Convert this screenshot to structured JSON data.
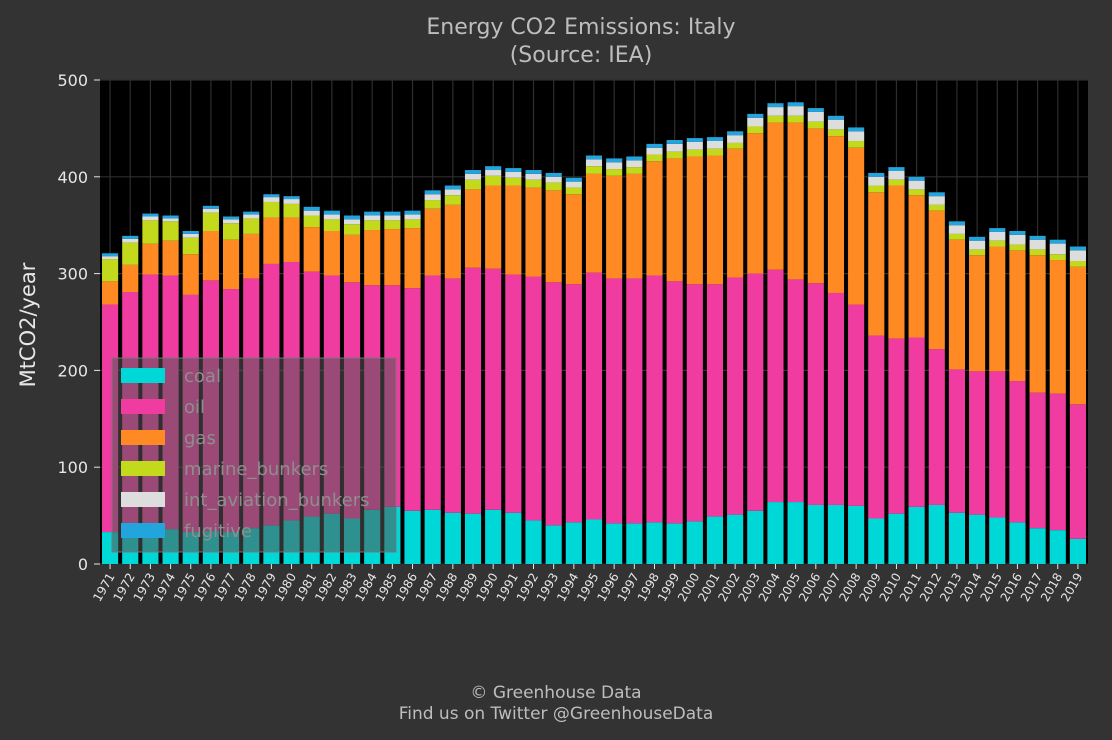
{
  "chart_data": {
    "type": "bar",
    "stacked": true,
    "title": "Energy CO2 Emissions: Italy",
    "subtitle": "(Source: IEA)",
    "ylabel": "MtCO2/year",
    "xlabel": "",
    "ylim": [
      0,
      500
    ],
    "yticks": [
      0,
      100,
      200,
      300,
      400,
      500
    ],
    "grid": true,
    "legend_position": "lower-left",
    "categories": [
      "1971",
      "1972",
      "1973",
      "1974",
      "1975",
      "1976",
      "1977",
      "1978",
      "1979",
      "1980",
      "1981",
      "1982",
      "1983",
      "1984",
      "1985",
      "1986",
      "1987",
      "1988",
      "1989",
      "1990",
      "1991",
      "1992",
      "1993",
      "1994",
      "1995",
      "1996",
      "1997",
      "1998",
      "1999",
      "2000",
      "2001",
      "2002",
      "2003",
      "2004",
      "2005",
      "2006",
      "2007",
      "2008",
      "2009",
      "2010",
      "2011",
      "2012",
      "2013",
      "2014",
      "2015",
      "2016",
      "2017",
      "2018",
      "2019"
    ],
    "series": [
      {
        "name": "coal",
        "color": "#00d8d8",
        "values": [
          33,
          30,
          32,
          36,
          33,
          34,
          33,
          37,
          40,
          45,
          49,
          52,
          47,
          56,
          59,
          55,
          56,
          53,
          52,
          56,
          53,
          45,
          40,
          43,
          46,
          42,
          42,
          43,
          42,
          44,
          49,
          51,
          55,
          64,
          64,
          61,
          61,
          60,
          47,
          52,
          59,
          61,
          53,
          51,
          48,
          43,
          37,
          35,
          26
        ]
      },
      {
        "name": "oil",
        "color": "#f03ca0",
        "values": [
          235,
          251,
          267,
          262,
          245,
          259,
          251,
          258,
          270,
          267,
          253,
          246,
          244,
          232,
          229,
          230,
          242,
          242,
          254,
          249,
          246,
          252,
          251,
          246,
          255,
          253,
          253,
          255,
          250,
          245,
          240,
          245,
          245,
          240,
          230,
          229,
          219,
          208,
          189,
          181,
          175,
          161,
          148,
          148,
          151,
          146,
          140,
          141,
          139
        ]
      },
      {
        "name": "gas",
        "color": "#ff8a24",
        "values": [
          24,
          28,
          32,
          36,
          42,
          51,
          51,
          46,
          48,
          46,
          46,
          46,
          49,
          57,
          58,
          62,
          69,
          76,
          81,
          86,
          92,
          92,
          95,
          93,
          102,
          106,
          108,
          118,
          127,
          132,
          133,
          133,
          145,
          152,
          162,
          160,
          162,
          162,
          148,
          158,
          147,
          143,
          134,
          120,
          129,
          135,
          142,
          138,
          142
        ]
      },
      {
        "name": "marine_bunkers",
        "color": "#c2d91c",
        "values": [
          23,
          23,
          24,
          20,
          17,
          19,
          17,
          16,
          16,
          14,
          12,
          12,
          11,
          10,
          9,
          9,
          9,
          10,
          10,
          10,
          8,
          8,
          8,
          7,
          8,
          7,
          7,
          7,
          7,
          7,
          7,
          6,
          7,
          7,
          7,
          7,
          7,
          7,
          7,
          6,
          6,
          6,
          6,
          6,
          6,
          6,
          6,
          6,
          6
        ]
      },
      {
        "name": "int_aviation_bunkers",
        "color": "#dddddd",
        "values": [
          3,
          4,
          4,
          3,
          4,
          4,
          4,
          4,
          5,
          5,
          5,
          5,
          5,
          5,
          5,
          5,
          6,
          6,
          6,
          6,
          6,
          6,
          6,
          6,
          7,
          7,
          7,
          7,
          8,
          8,
          8,
          8,
          9,
          9,
          10,
          10,
          10,
          10,
          9,
          9,
          9,
          9,
          9,
          9,
          9,
          10,
          10,
          11,
          11
        ]
      },
      {
        "name": "fugitive",
        "color": "#22a4dc",
        "values": [
          3,
          3,
          3,
          3,
          3,
          3,
          3,
          3,
          3,
          3,
          4,
          4,
          4,
          4,
          4,
          4,
          4,
          4,
          4,
          4,
          4,
          4,
          4,
          4,
          4,
          4,
          4,
          4,
          4,
          4,
          4,
          4,
          4,
          4,
          4,
          4,
          4,
          4,
          4,
          4,
          4,
          4,
          4,
          4,
          4,
          4,
          4,
          4,
          4
        ]
      }
    ]
  },
  "footer": {
    "copyright": "© Greenhouse Data",
    "twitter": "Find us on Twitter @GreenhouseData"
  }
}
